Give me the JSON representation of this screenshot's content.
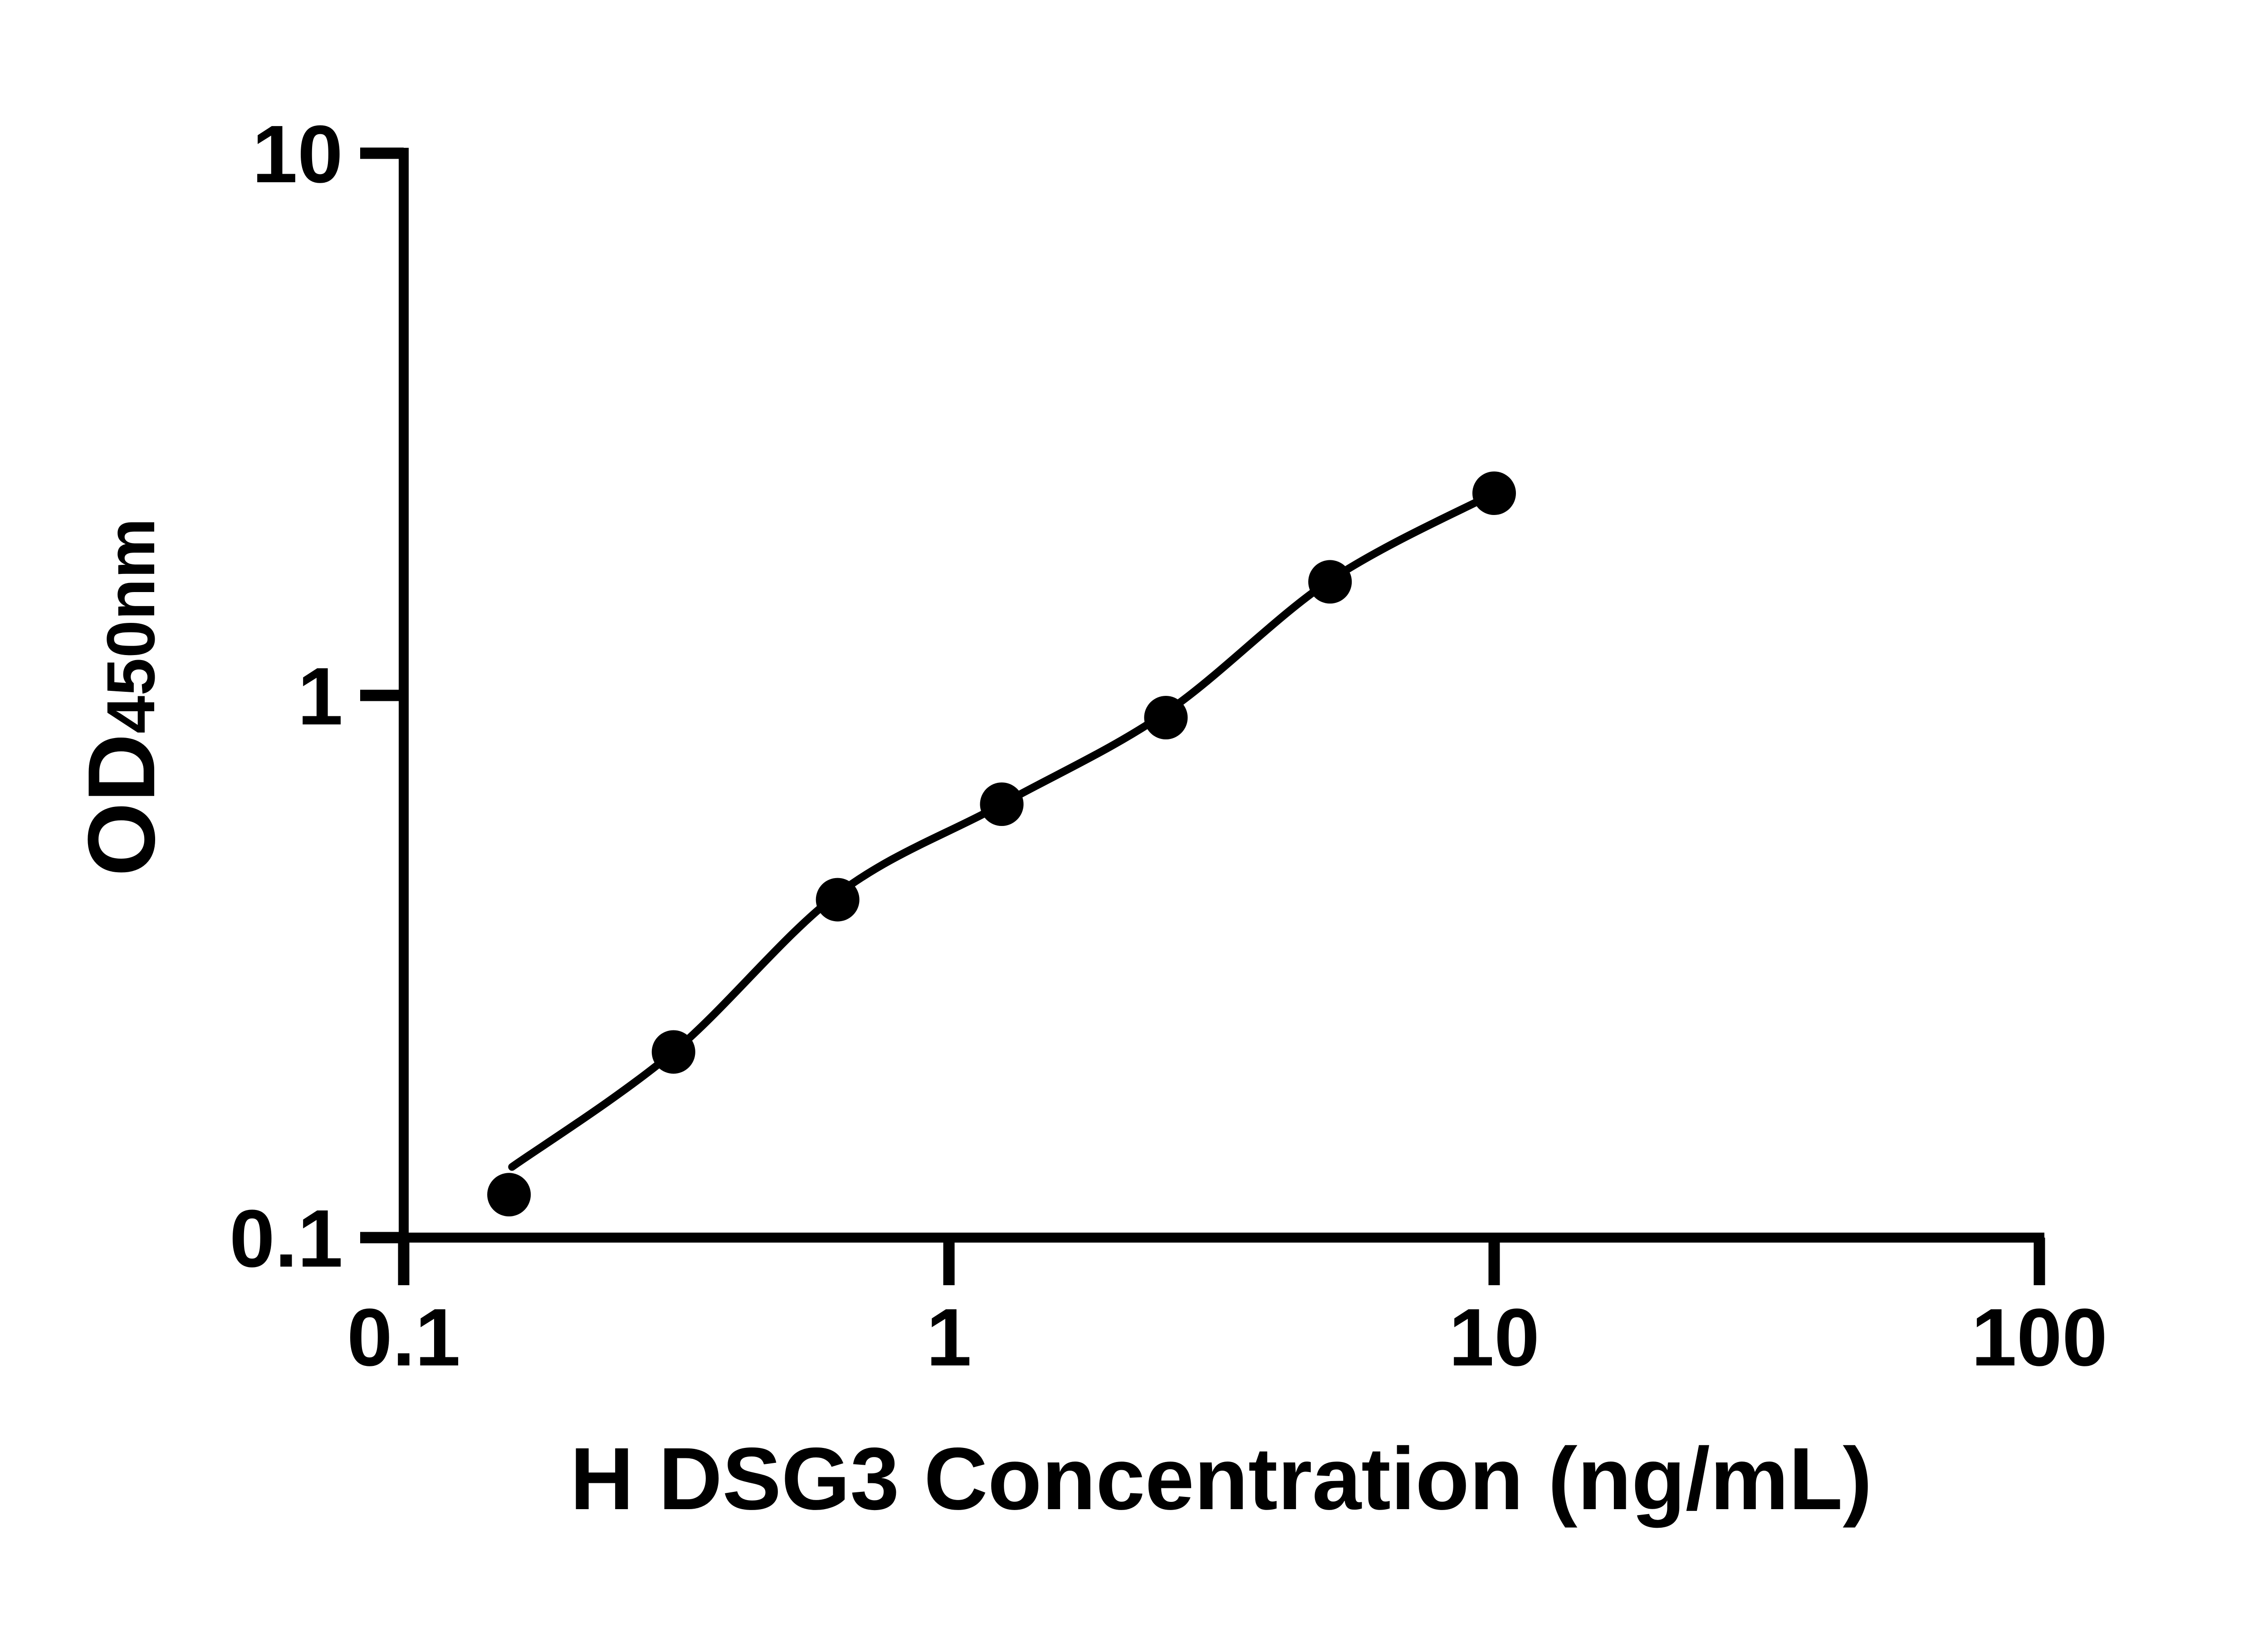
{
  "figure": {
    "background_color": "#ffffff",
    "ink_color": "#000000"
  },
  "chart_data": {
    "type": "scatter",
    "title": "",
    "xlabel": "H DSG3 Concentration (ng/mL)",
    "ylabel": "OD450nm",
    "ylabel_main": "OD",
    "ylabel_sub": "450nm",
    "x_scale": "log10",
    "y_scale": "log10",
    "xlim": [
      0.1,
      100
    ],
    "ylim": [
      0.1,
      10
    ],
    "grid": false,
    "legend": false,
    "x_ticks": [
      {
        "value": 0.1,
        "label": "0.1"
      },
      {
        "value": 1,
        "label": "1"
      },
      {
        "value": 10,
        "label": "10"
      },
      {
        "value": 100,
        "label": "100"
      }
    ],
    "y_ticks": [
      {
        "value": 0.1,
        "label": "0.1"
      },
      {
        "value": 1,
        "label": "1"
      },
      {
        "value": 10,
        "label": "10"
      }
    ],
    "series": [
      {
        "name": "standard-curve-points",
        "marker": {
          "shape": "circle",
          "radius_px": 48,
          "fill": "#000000"
        },
        "points": [
          {
            "x": 0.156,
            "od": 0.12
          },
          {
            "x": 0.3125,
            "od": 0.22
          },
          {
            "x": 0.625,
            "od": 0.42
          },
          {
            "x": 1.25,
            "od": 0.63
          },
          {
            "x": 2.5,
            "od": 0.91
          },
          {
            "x": 5,
            "od": 1.62
          },
          {
            "x": 10,
            "od": 2.36
          }
        ]
      }
    ],
    "fit_curve": [
      {
        "x": 0.158,
        "od": 0.135
      },
      {
        "x": 0.3125,
        "od": 0.22
      },
      {
        "x": 0.625,
        "od": 0.43
      },
      {
        "x": 1.25,
        "od": 0.63
      },
      {
        "x": 2.5,
        "od": 0.93
      },
      {
        "x": 5,
        "od": 1.63
      },
      {
        "x": 10,
        "od": 2.36
      }
    ]
  }
}
